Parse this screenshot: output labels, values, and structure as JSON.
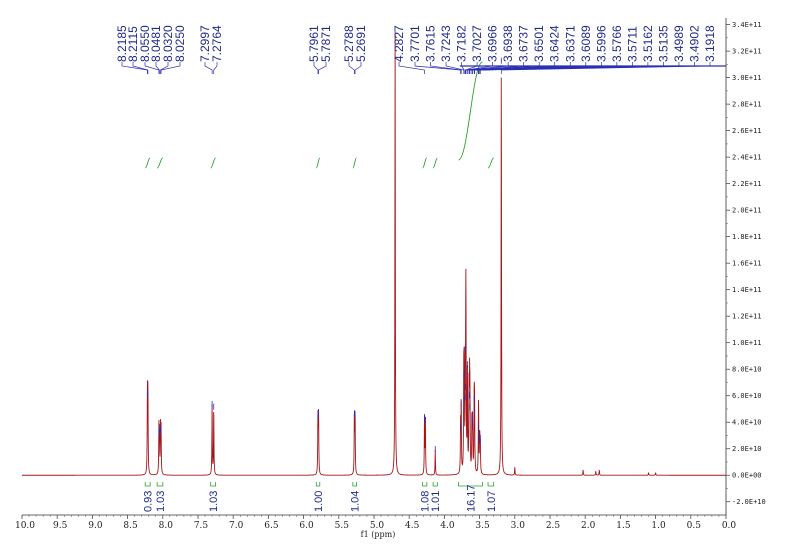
{
  "chart_data": {
    "type": "line",
    "xlabel": "f1 (ppm)",
    "ylabel": "",
    "x_axis": {
      "range": [
        10.0,
        0.0
      ],
      "reversed": true,
      "ticks": [
        "10.0",
        "9.5",
        "9.0",
        "8.5",
        "8.0",
        "7.5",
        "7.0",
        "6.5",
        "6.0",
        "5.5",
        "5.0",
        "4.5",
        "4.0",
        "3.5",
        "3.0",
        "2.5",
        "2.0",
        "1.5",
        "1.0",
        "0.5",
        "0.0"
      ]
    },
    "y_axis": {
      "range": [
        -30000000000.0,
        345000000000.0
      ],
      "side": "right",
      "ticks": [
        "3.4E+11",
        "3.2E+11",
        "3.0E+11",
        "2.8E+11",
        "2.6E+11",
        "2.4E+11",
        "2.2E+11",
        "2.0E+11",
        "1.8E+11",
        "1.6E+11",
        "1.4E+11",
        "1.2E+11",
        "1.0E+11",
        "8.0E+10",
        "6.0E+10",
        "4.0E+10",
        "2.0E+10",
        "0.0E+00",
        "-2.0E+10"
      ]
    },
    "grid": false,
    "peaks": [
      {
        "x": 8.2185,
        "y": 61000000000.0
      },
      {
        "x": 8.2115,
        "y": 60000000000.0
      },
      {
        "x": 8.055,
        "y": 34000000000.0
      },
      {
        "x": 8.0481,
        "y": 31000000000.0
      },
      {
        "x": 8.032,
        "y": 35000000000.0
      },
      {
        "x": 8.025,
        "y": 32000000000.0
      },
      {
        "x": 7.2997,
        "y": 53000000000.0
      },
      {
        "x": 7.2764,
        "y": 51000000000.0
      },
      {
        "x": 5.7961,
        "y": 46000000000.0
      },
      {
        "x": 5.7871,
        "y": 44000000000.0
      },
      {
        "x": 5.2788,
        "y": 46000000000.0
      },
      {
        "x": 5.2691,
        "y": 45000000000.0
      },
      {
        "x": 4.7,
        "y": 332000000000.0
      },
      {
        "x": 4.2827,
        "y": 43000000000.0
      },
      {
        "x": 4.27,
        "y": 41000000000.0
      },
      {
        "x": 4.13,
        "y": 19000000000.0
      },
      {
        "x": 3.7701,
        "y": 36000000000.0
      },
      {
        "x": 3.7615,
        "y": 53000000000.0
      },
      {
        "x": 3.7243,
        "y": 74000000000.0
      },
      {
        "x": 3.7182,
        "y": 76000000000.0
      },
      {
        "x": 3.7027,
        "y": 58000000000.0
      },
      {
        "x": 3.6966,
        "y": 66000000000.0
      },
      {
        "x": 3.6938,
        "y": 95000000000.0
      },
      {
        "x": 3.6737,
        "y": 83000000000.0
      },
      {
        "x": 3.6501,
        "y": 59000000000.0
      },
      {
        "x": 3.6424,
        "y": 60000000000.0
      },
      {
        "x": 3.6371,
        "y": 51000000000.0
      },
      {
        "x": 3.6089,
        "y": 43000000000.0
      },
      {
        "x": 3.5996,
        "y": 39000000000.0
      },
      {
        "x": 3.5766,
        "y": 57000000000.0
      },
      {
        "x": 3.5711,
        "y": 47000000000.0
      },
      {
        "x": 3.5162,
        "y": 35000000000.0
      },
      {
        "x": 3.5135,
        "y": 27000000000.0
      },
      {
        "x": 3.4989,
        "y": 30000000000.0
      },
      {
        "x": 3.4902,
        "y": 25000000000.0
      },
      {
        "x": 3.1918,
        "y": 312000000000.0
      },
      {
        "x": 3.0,
        "y": 6000000000.0
      },
      {
        "x": 2.03,
        "y": 4000000000.0
      },
      {
        "x": 1.85,
        "y": 3000000000.0
      },
      {
        "x": 1.8,
        "y": 4000000000.0
      },
      {
        "x": 1.1,
        "y": 2000000000.0
      },
      {
        "x": 1.0,
        "y": 2000000000.0
      }
    ],
    "peak_labels": [
      "8.2185",
      "8.2115",
      "8.0550",
      "8.0481",
      "8.0320",
      "8.0250",
      "7.2997",
      "7.2764",
      "5.7961",
      "5.7871",
      "5.2788",
      "5.2691",
      "4.2827",
      "3.7701",
      "3.7615",
      "3.7243",
      "3.7182",
      "3.7027",
      "3.6966",
      "3.6938",
      "3.6737",
      "3.6501",
      "3.6424",
      "3.6371",
      "3.6089",
      "3.5996",
      "3.5766",
      "3.5711",
      "3.5162",
      "3.5135",
      "3.4989",
      "3.4902",
      "3.1918"
    ],
    "integrals": [
      {
        "from": 8.25,
        "to": 8.18,
        "value": "0.93"
      },
      {
        "from": 8.08,
        "to": 8.0,
        "value": "1.03"
      },
      {
        "from": 7.32,
        "to": 7.25,
        "value": "1.03"
      },
      {
        "from": 5.82,
        "to": 5.77,
        "value": "1.00"
      },
      {
        "from": 5.3,
        "to": 5.25,
        "value": "1.04"
      },
      {
        "from": 4.31,
        "to": 4.25,
        "value": "1.08"
      },
      {
        "from": 4.16,
        "to": 4.1,
        "value": "1.01"
      },
      {
        "from": 3.8,
        "to": 3.46,
        "value": "16.17"
      },
      {
        "from": 3.38,
        "to": 3.3,
        "value": "1.07"
      }
    ],
    "colors": {
      "spectrum": "#a5161c",
      "peak_marker": "#2b2fb5",
      "label": "#1f2a8a",
      "integral": "#2aa12a"
    }
  }
}
